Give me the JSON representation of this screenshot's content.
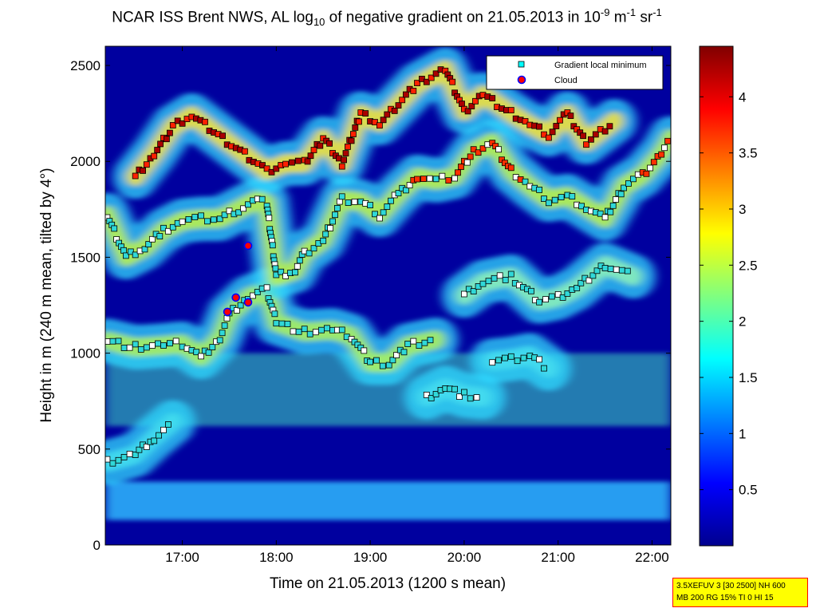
{
  "chart_data": {
    "type": "heatmap",
    "title": {
      "part1": "NCAR ISS Brent NWS, AL log",
      "sub1": "10",
      "part2": " of negative gradient on 21.05.2013 in 10",
      "sup1": "-9",
      "part3": " m",
      "sup2": "-1",
      "part4": " sr",
      "sup3": "-1"
    },
    "xlabel": "Time on 21.05.2013 (1200 s mean)",
    "ylabel": "Height in m (240 m mean, tilted by 4°)",
    "x_ticks": [
      "17:00",
      "18:00",
      "19:00",
      "20:00",
      "21:00",
      "22:00"
    ],
    "x_tick_hours": [
      17,
      18,
      19,
      20,
      21,
      22
    ],
    "xlim_hours": [
      16.18,
      22.2
    ],
    "y_ticks": [
      0,
      500,
      1000,
      1500,
      2000,
      2500
    ],
    "ylim": [
      0,
      2600
    ],
    "colorbar": {
      "ticks": [
        0.5,
        1,
        1.5,
        2,
        2.5,
        3,
        3.5,
        4
      ],
      "tick_labels": [
        "0.5",
        "1",
        "1.5",
        "2",
        "2.5",
        "3",
        "3.5",
        "4"
      ],
      "range": [
        0,
        4.45
      ],
      "colormap": "jet"
    },
    "legend": {
      "position": "top-right",
      "entries": [
        {
          "label": "Gradient local minimum",
          "color": "#00ffff"
        },
        {
          "label": "Cloud",
          "color": "#ff0000"
        }
      ]
    },
    "layers": [
      {
        "name": "",
        "points": [
          [
            16.2,
            430
          ],
          [
            16.5,
            470
          ],
          [
            16.7,
            560
          ],
          [
            16.9,
            640
          ]
        ]
      },
      {
        "name": "",
        "points": [
          [
            16.2,
            1065
          ],
          [
            16.5,
            1030
          ],
          [
            16.8,
            1040
          ],
          [
            17.0,
            1050
          ],
          [
            17.2,
            980
          ],
          [
            17.4,
            1080
          ],
          [
            17.5,
            1200
          ],
          [
            17.7,
            1290
          ],
          [
            17.9,
            1330
          ],
          [
            18.0,
            1160
          ],
          [
            18.3,
            1110
          ],
          [
            18.6,
            1120
          ],
          [
            18.8,
            1090
          ],
          [
            19.0,
            950
          ],
          [
            19.2,
            950
          ],
          [
            19.4,
            1040
          ],
          [
            19.7,
            1070
          ]
        ]
      },
      {
        "name": "",
        "points": [
          [
            19.6,
            770
          ],
          [
            19.8,
            820
          ],
          [
            20.0,
            780
          ],
          [
            20.2,
            770
          ]
        ]
      },
      {
        "name": "",
        "points": [
          [
            20.3,
            960
          ],
          [
            20.5,
            970
          ],
          [
            20.7,
            990
          ],
          [
            20.9,
            920
          ]
        ]
      },
      {
        "name": "",
        "points": [
          [
            20.0,
            1300
          ],
          [
            20.2,
            1370
          ],
          [
            20.5,
            1400
          ],
          [
            20.8,
            1270
          ],
          [
            21.0,
            1290
          ],
          [
            21.2,
            1340
          ],
          [
            21.5,
            1460
          ],
          [
            21.8,
            1400
          ]
        ]
      },
      {
        "name": "",
        "points": [
          [
            16.2,
            1720
          ],
          [
            16.4,
            1500
          ],
          [
            16.6,
            1550
          ],
          [
            16.8,
            1640
          ],
          [
            17.0,
            1690
          ],
          [
            17.2,
            1700
          ],
          [
            17.4,
            1700
          ],
          [
            17.6,
            1750
          ],
          [
            17.8,
            1800
          ],
          [
            17.9,
            1780
          ],
          [
            18.0,
            1400
          ],
          [
            18.2,
            1430
          ],
          [
            18.3,
            1520
          ],
          [
            18.5,
            1590
          ],
          [
            18.7,
            1800
          ],
          [
            18.9,
            1790
          ],
          [
            19.1,
            1720
          ],
          [
            19.3,
            1830
          ],
          [
            19.5,
            1920
          ],
          [
            19.7,
            1900
          ],
          [
            19.9,
            1920
          ],
          [
            20.1,
            2050
          ],
          [
            20.3,
            2100
          ],
          [
            20.5,
            1950
          ],
          [
            20.7,
            1870
          ],
          [
            20.9,
            1800
          ],
          [
            21.1,
            1820
          ],
          [
            21.3,
            1760
          ],
          [
            21.5,
            1700
          ],
          [
            21.7,
            1870
          ],
          [
            21.9,
            1930
          ],
          [
            22.1,
            2040
          ],
          [
            22.2,
            2120
          ]
        ]
      },
      {
        "name": "",
        "points": [
          [
            16.5,
            1920
          ],
          [
            16.7,
            2040
          ],
          [
            16.9,
            2180
          ],
          [
            17.1,
            2240
          ],
          [
            17.9,
            1950
          ],
          [
            18.1,
            1990
          ],
          [
            18.3,
            1990
          ],
          [
            18.5,
            2120
          ],
          [
            18.7,
            1990
          ],
          [
            18.9,
            2250
          ],
          [
            19.1,
            2200
          ],
          [
            19.5,
            2400
          ],
          [
            19.8,
            2480
          ],
          [
            20.0,
            2260
          ],
          [
            20.2,
            2350
          ],
          [
            20.5,
            2250
          ],
          [
            20.7,
            2190
          ],
          [
            20.9,
            2140
          ],
          [
            21.1,
            2250
          ],
          [
            21.3,
            2100
          ],
          [
            21.6,
            2210
          ]
        ]
      }
    ],
    "clouds": [
      [
        17.48,
        1215
      ],
      [
        17.57,
        1290
      ],
      [
        17.7,
        1265
      ],
      [
        17.7,
        1560
      ]
    ],
    "info_lines": [
      "3.5XEFUV 3 [30 2500] NH 600",
      "MB 200 RG 15% TI 0 HI 15"
    ]
  }
}
